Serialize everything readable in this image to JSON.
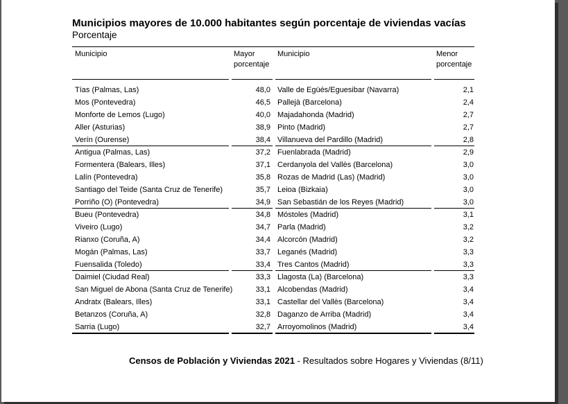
{
  "title": "Municipios mayores de 10.000 habitantes según porcentaje de viviendas vacías",
  "subtitle": "Porcentaje",
  "headers": {
    "municipio_left": "Municipio",
    "mayor_line1": "Mayor",
    "mayor_line2": "porcentaje",
    "municipio_right": "Municipio",
    "menor_line1": "Menor",
    "menor_line2": "porcentaje"
  },
  "rows": [
    {
      "left_name": "Tías (Palmas, Las)",
      "left_value": "48,0",
      "right_name": "Valle de Egüés/Eguesibar (Navarra)",
      "right_value": "2,1"
    },
    {
      "left_name": "Mos (Pontevedra)",
      "left_value": "46,5",
      "right_name": "Pallejà (Barcelona)",
      "right_value": "2,4"
    },
    {
      "left_name": "Monforte de Lemos (Lugo)",
      "left_value": "40,0",
      "right_name": "Majadahonda (Madrid)",
      "right_value": "2,7"
    },
    {
      "left_name": "Aller (Asturias)",
      "left_value": "38,9",
      "right_name": "Pinto (Madrid)",
      "right_value": "2,7"
    },
    {
      "left_name": "Verín (Ourense)",
      "left_value": "38,4",
      "right_name": "Villanueva del Pardillo (Madrid)",
      "right_value": "2,8"
    },
    {
      "left_name": "Antigua (Palmas, Las)",
      "left_value": "37,2",
      "right_name": "Fuenlabrada (Madrid)",
      "right_value": "2,9"
    },
    {
      "left_name": "Formentera (Balears, Illes)",
      "left_value": "37,1",
      "right_name": "Cerdanyola del Vallès (Barcelona)",
      "right_value": "3,0"
    },
    {
      "left_name": "Lalín (Pontevedra)",
      "left_value": "35,8",
      "right_name": "Rozas de Madrid (Las) (Madrid)",
      "right_value": "3,0"
    },
    {
      "left_name": "Santiago del Teide (Santa Cruz de Tenerife)",
      "left_value": "35,7",
      "right_name": "Leioa (Bizkaia)",
      "right_value": "3,0"
    },
    {
      "left_name": "Porriño (O) (Pontevedra)",
      "left_value": "34,9",
      "right_name": "San Sebastián de los Reyes (Madrid)",
      "right_value": "3,0"
    },
    {
      "left_name": "Bueu (Pontevedra)",
      "left_value": "34,8",
      "right_name": "Móstoles (Madrid)",
      "right_value": "3,1"
    },
    {
      "left_name": "Viveiro (Lugo)",
      "left_value": "34,7",
      "right_name": "Parla (Madrid)",
      "right_value": "3,2"
    },
    {
      "left_name": "Rianxo (Coruña, A)",
      "left_value": "34,4",
      "right_name": "Alcorcón (Madrid)",
      "right_value": "3,2"
    },
    {
      "left_name": "Mogán (Palmas, Las)",
      "left_value": "33,7",
      "right_name": "Leganés (Madrid)",
      "right_value": "3,3"
    },
    {
      "left_name": "Fuensalida (Toledo)",
      "left_value": "33,4",
      "right_name": "Tres Cantos (Madrid)",
      "right_value": "3,3"
    },
    {
      "left_name": "Daimiel (Ciudad Real)",
      "left_value": "33,3",
      "right_name": "Llagosta (La) (Barcelona)",
      "right_value": "3,3"
    },
    {
      "left_name": "San Miguel de Abona (Santa Cruz de Tenerife)",
      "left_value": "33,1",
      "right_name": "Alcobendas (Madrid)",
      "right_value": "3,4"
    },
    {
      "left_name": "Andratx (Balears, Illes)",
      "left_value": "33,1",
      "right_name": "Castellar del Vallès (Barcelona)",
      "right_value": "3,4"
    },
    {
      "left_name": "Betanzos (Coruña, A)",
      "left_value": "32,8",
      "right_name": "Daganzo de Arriba (Madrid)",
      "right_value": "3,4"
    },
    {
      "left_name": "Sarria (Lugo)",
      "left_value": "32,7",
      "right_name": "Arroyomolinos (Madrid)",
      "right_value": "3,4"
    }
  ],
  "footer": {
    "bold": "Censos de Población y Viviendas 2021",
    "rest": " - Resultados sobre Hogares y Viviendas (8/11)"
  }
}
